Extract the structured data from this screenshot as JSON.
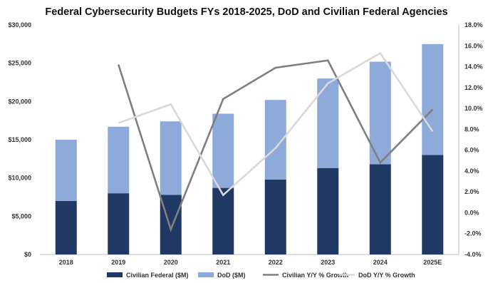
{
  "chart_data": {
    "type": "bar",
    "title": "Federal Cybersecurity Budgets FYs 2018-2025, DoD and Civilian Federal Agencies",
    "categories": [
      "2018",
      "2019",
      "2020",
      "2021",
      "2022",
      "2023",
      "2024",
      "2025E"
    ],
    "stacked": true,
    "series": [
      {
        "name": "Civilian Federal ($M)",
        "type": "bar",
        "axis": "left",
        "color": "#1f3864",
        "values": [
          7000,
          8000,
          7800,
          8700,
          9800,
          11300,
          11800,
          13000
        ]
      },
      {
        "name": "DoD ($M)",
        "type": "bar",
        "axis": "left",
        "color": "#8eaadb",
        "values": [
          8000,
          8700,
          9600,
          9700,
          10400,
          11700,
          13400,
          14500
        ]
      },
      {
        "name": "Civilian Y/Y % Growth",
        "type": "line",
        "axis": "right",
        "color": "#7f7f7f",
        "values": [
          null,
          14.2,
          -1.6,
          10.9,
          13.9,
          14.6,
          4.8,
          9.9
        ]
      },
      {
        "name": "DoD Y/Y % Growth",
        "type": "line",
        "axis": "right",
        "color": "#d9d9d9",
        "values": [
          null,
          8.6,
          10.4,
          1.7,
          6.2,
          12.4,
          15.3,
          7.8
        ]
      }
    ],
    "y_left": {
      "min": 0,
      "max": 30000,
      "ticks": [
        0,
        5000,
        10000,
        15000,
        20000,
        25000,
        30000
      ],
      "tick_labels": [
        "$0",
        "$5,000",
        "$10,000",
        "$15,000",
        "$20,000",
        "$25,000",
        "$30,000"
      ]
    },
    "y_right": {
      "min": -4,
      "max": 18,
      "ticks": [
        -4,
        -2,
        0,
        2,
        4,
        6,
        8,
        10,
        12,
        14,
        16,
        18
      ],
      "tick_labels": [
        "-4.0%",
        "-2.0%",
        "0.0%",
        "2.0%",
        "4.0%",
        "6.0%",
        "8.0%",
        "10.0%",
        "12.0%",
        "14.0%",
        "16.0%",
        "18.0%"
      ]
    },
    "grid": false,
    "legend_position": "bottom"
  }
}
